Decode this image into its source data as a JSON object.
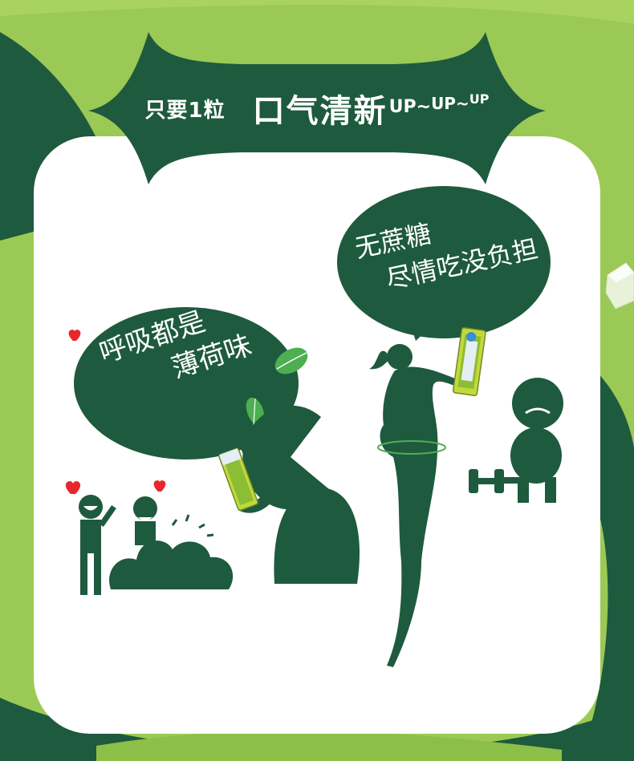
{
  "banner": {
    "prefix": "只要1粒",
    "headline": "口气清新",
    "up_1": "UP~",
    "up_2": "UP~",
    "up_3": "UP"
  },
  "bubbles": {
    "left_line1": "呼吸都是",
    "left_line2": "薄荷味",
    "right_line1": "无蔗糖",
    "right_line2": "尽情吃没负担"
  },
  "colors": {
    "background_green": "#9bc955",
    "dark_green": "#1e5a3e",
    "card_white": "#ffffff",
    "heart_red": "#e8262b",
    "mint_leaf": "#4caf50",
    "pack_yellow_green": "#c4d83a"
  },
  "icons": [
    "heart-icon",
    "mint-leaf-icon",
    "gum-pack-icon",
    "dumbbell-icon",
    "ice-cube-icon"
  ]
}
